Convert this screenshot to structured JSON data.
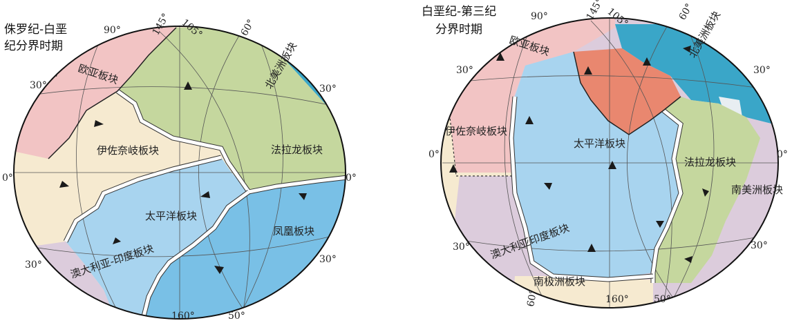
{
  "left_map": {
    "title_line1": "侏罗纪-白垩",
    "title_line2": "纪分界时期",
    "plates": {
      "eurasia": "欧亚板块",
      "izanagi": "伊佐奈岐板块",
      "farallon": "法拉龙板块",
      "north_america": "北美洲板块",
      "pacific": "太平洋板块",
      "phoenix": "凤凰板块",
      "australia_india": "澳大利亚-印度板块"
    },
    "grid_labels": {
      "top_90": "90°",
      "top_145": "145°",
      "top_105": "105°",
      "top_60": "60°",
      "left_30": "30°",
      "right_30": "30°",
      "left_0": "0°",
      "right_0": "0°",
      "left_30s": "30°",
      "right_30s": "30°",
      "bottom_160": "160°",
      "bottom_50": "50°"
    }
  },
  "right_map": {
    "title_line1": "白垩纪-第三纪",
    "title_line2": "分界时期",
    "plates": {
      "eurasia": "欧亚板块",
      "north_america": "北美洲板块",
      "izanagi": "伊佐奈岐板块",
      "pacific": "太平洋板块",
      "farallon": "法拉龙板块",
      "south_america": "南美洲板块",
      "australia_india": "澳大利亚印度板块",
      "antarctica": "南极洲板块"
    },
    "grid_labels": {
      "top_90": "90°",
      "top_145": "145°",
      "top_105": "105°",
      "top_60": "60°",
      "left_30": "30°",
      "right_30": "30°",
      "left_0": "0°",
      "right_0": "0°",
      "left_30s": "30°",
      "right_30s": "30°",
      "bottom_60": "60°",
      "bottom_160": "160°",
      "bottom_50": "50°"
    }
  },
  "colors": {
    "eurasia": "#f2c4c4",
    "izanagi": "#f6ead0",
    "farallon": "#c5d79e",
    "north_america": "#3aa6c8",
    "pacific": "#a8d4ef",
    "phoenix": "#79c0e6",
    "australia_india": "#dcccdc",
    "antarctica": "#f6ead0",
    "south_america": "#dcccdc",
    "kula_red": "#e9876f"
  }
}
